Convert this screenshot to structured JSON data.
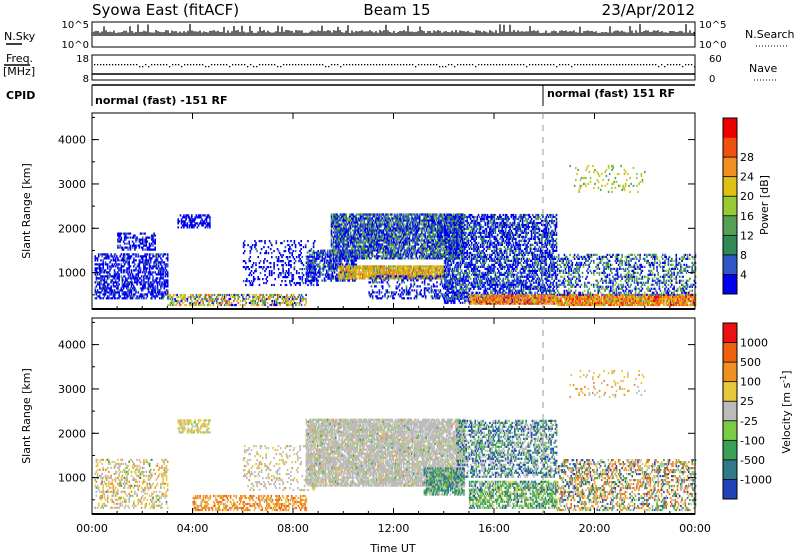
{
  "header": {
    "station": "Syowa East (fitACF)",
    "beam": "Beam 15",
    "date": "23/Apr/2012"
  },
  "status_panels": {
    "nsky_label": "N.Sky",
    "nsky_ticks": [
      "10^5",
      "10^0"
    ],
    "nsearch_label": "N.Search",
    "nsearch_ticks": [
      "10^5",
      "10^0"
    ],
    "freq_label": "Freq.",
    "freq_unit": "[MHz]",
    "freq_ticks": [
      "18",
      "8"
    ],
    "nave_label": "Nave",
    "nave_ticks": [
      "60",
      "0"
    ],
    "cpid_label": "CPID",
    "cpid_segments": [
      {
        "label": "normal (fast) -151 RF",
        "start_hour": 0,
        "end_hour": 18
      },
      {
        "label": "normal (fast) 151 RF",
        "start_hour": 18,
        "end_hour": 24
      }
    ]
  },
  "chart_data": [
    {
      "type": "heatmap",
      "title": "",
      "xlabel": "",
      "ylabel": "Slant Range [km]",
      "xlim": [
        0,
        24
      ],
      "ylim": [
        180,
        4600
      ],
      "x_ticks": [
        "00:00",
        "04:00",
        "08:00",
        "12:00",
        "16:00",
        "20:00",
        "00:00"
      ],
      "y_ticks": [
        1000,
        2000,
        3000,
        4000
      ],
      "colorbar": {
        "label": "Power [dB]",
        "ticks": [
          4,
          8,
          12,
          16,
          20,
          24,
          28
        ],
        "colors": [
          "#0000ee",
          "#2f57c8",
          "#2f8a57",
          "#55a055",
          "#99c935",
          "#e0c012",
          "#f09020",
          "#f05010",
          "#ee0000"
        ]
      },
      "regions": [
        {
          "t0": 0.1,
          "t1": 3.0,
          "r0": 400,
          "r1": 1400,
          "density": 0.5,
          "weights": [
            0.75,
            0.18,
            0.05,
            0.02,
            0,
            0,
            0,
            0,
            0
          ]
        },
        {
          "t0": 1.0,
          "t1": 2.5,
          "r0": 1500,
          "r1": 1900,
          "density": 0.45,
          "weights": [
            0.8,
            0.15,
            0.05,
            0,
            0,
            0,
            0,
            0,
            0
          ]
        },
        {
          "t0": 3.4,
          "t1": 4.7,
          "r0": 2000,
          "r1": 2300,
          "density": 0.6,
          "weights": [
            0.9,
            0.1,
            0,
            0,
            0,
            0,
            0,
            0,
            0
          ]
        },
        {
          "t0": 3.0,
          "t1": 8.5,
          "r0": 250,
          "r1": 500,
          "density": 0.55,
          "weights": [
            0.1,
            0.1,
            0.1,
            0.1,
            0.15,
            0.2,
            0.15,
            0.1,
            0
          ]
        },
        {
          "t0": 6.0,
          "t1": 9.0,
          "r0": 700,
          "r1": 1700,
          "density": 0.22,
          "weights": [
            0.8,
            0.15,
            0.05,
            0,
            0,
            0,
            0,
            0,
            0
          ]
        },
        {
          "t0": 8.5,
          "t1": 10.5,
          "r0": 800,
          "r1": 1500,
          "density": 0.6,
          "weights": [
            0.55,
            0.25,
            0.15,
            0.05,
            0,
            0,
            0,
            0,
            0
          ]
        },
        {
          "t0": 9.5,
          "t1": 14.8,
          "r0": 1300,
          "r1": 2300,
          "density": 0.78,
          "weights": [
            0.4,
            0.2,
            0.2,
            0.1,
            0.1,
            0,
            0,
            0,
            0
          ]
        },
        {
          "t0": 9.8,
          "t1": 14.0,
          "r0": 850,
          "r1": 1150,
          "density": 0.9,
          "weights": [
            0,
            0,
            0,
            0.1,
            0.2,
            0.3,
            0.3,
            0.1,
            0
          ]
        },
        {
          "t0": 11.0,
          "t1": 14.8,
          "r0": 400,
          "r1": 900,
          "density": 0.35,
          "weights": [
            0.6,
            0.25,
            0.1,
            0.05,
            0,
            0,
            0,
            0,
            0
          ]
        },
        {
          "t0": 14.0,
          "t1": 18.5,
          "r0": 300,
          "r1": 2300,
          "density": 0.55,
          "weights": [
            0.55,
            0.2,
            0.15,
            0.1,
            0,
            0,
            0,
            0,
            0
          ]
        },
        {
          "t0": 15.0,
          "t1": 18.5,
          "r0": 280,
          "r1": 480,
          "density": 0.85,
          "weights": [
            0,
            0,
            0,
            0,
            0.1,
            0.2,
            0.3,
            0.3,
            0.1
          ]
        },
        {
          "t0": 18.5,
          "t1": 24.0,
          "r0": 250,
          "r1": 480,
          "density": 0.9,
          "weights": [
            0,
            0,
            0,
            0.05,
            0.1,
            0.2,
            0.3,
            0.25,
            0.1
          ]
        },
        {
          "t0": 18.5,
          "t1": 24.0,
          "r0": 480,
          "r1": 1400,
          "density": 0.35,
          "weights": [
            0.3,
            0.2,
            0.2,
            0.2,
            0.1,
            0,
            0,
            0,
            0
          ]
        },
        {
          "t0": 19.0,
          "t1": 22.0,
          "r0": 2800,
          "r1": 3400,
          "density": 0.08,
          "weights": [
            0,
            0,
            0,
            0.3,
            0.4,
            0.3,
            0,
            0,
            0
          ]
        }
      ]
    },
    {
      "type": "heatmap",
      "title": "",
      "xlabel": "Time UT",
      "ylabel": "Slant Range [km]",
      "xlim": [
        0,
        24
      ],
      "ylim": [
        180,
        4600
      ],
      "x_ticks": [
        "00:00",
        "04:00",
        "08:00",
        "12:00",
        "16:00",
        "20:00",
        "00:00"
      ],
      "y_ticks": [
        1000,
        2000,
        3000,
        4000
      ],
      "colorbar": {
        "label": "Velocity [m s^-1]",
        "ticks": [
          1000,
          500,
          100,
          25,
          -25,
          -100,
          -500,
          -1000
        ],
        "colors": [
          "#2244bb",
          "#2e7a8a",
          "#3aa055",
          "#7acc44",
          "#bbbbbb",
          "#e6c83c",
          "#f09020",
          "#f06010",
          "#ee1010"
        ]
      },
      "regions": [
        {
          "t0": 0.1,
          "t1": 3.0,
          "r0": 300,
          "r1": 1400,
          "density": 0.3,
          "weights": [
            0,
            0,
            0.05,
            0.05,
            0.4,
            0.3,
            0.2,
            0,
            0
          ]
        },
        {
          "t0": 3.4,
          "t1": 4.7,
          "r0": 2000,
          "r1": 2300,
          "density": 0.5,
          "weights": [
            0,
            0,
            0,
            0.1,
            0.3,
            0.6,
            0,
            0,
            0
          ]
        },
        {
          "t0": 4.0,
          "t1": 8.5,
          "r0": 250,
          "r1": 600,
          "density": 0.45,
          "weights": [
            0,
            0,
            0,
            0,
            0.05,
            0.15,
            0.6,
            0.2,
            0
          ]
        },
        {
          "t0": 6.0,
          "t1": 9.0,
          "r0": 700,
          "r1": 1700,
          "density": 0.18,
          "weights": [
            0,
            0,
            0,
            0,
            0.7,
            0.2,
            0.1,
            0,
            0
          ]
        },
        {
          "t0": 8.5,
          "t1": 14.8,
          "r0": 800,
          "r1": 2300,
          "density": 0.8,
          "weights": [
            0,
            0,
            0.02,
            0.05,
            0.85,
            0.05,
            0.03,
            0,
            0
          ]
        },
        {
          "t0": 13.2,
          "t1": 14.8,
          "r0": 600,
          "r1": 1200,
          "density": 0.7,
          "weights": [
            0,
            0.4,
            0.3,
            0.1,
            0.2,
            0,
            0,
            0,
            0
          ]
        },
        {
          "t0": 14.5,
          "t1": 18.5,
          "r0": 1000,
          "r1": 2300,
          "density": 0.5,
          "weights": [
            0.2,
            0.2,
            0.15,
            0.1,
            0.35,
            0,
            0,
            0,
            0
          ]
        },
        {
          "t0": 15.0,
          "t1": 18.5,
          "r0": 300,
          "r1": 900,
          "density": 0.6,
          "weights": [
            0.05,
            0.15,
            0.3,
            0.3,
            0.1,
            0.1,
            0,
            0,
            0
          ]
        },
        {
          "t0": 18.5,
          "t1": 24.0,
          "r0": 250,
          "r1": 1400,
          "density": 0.4,
          "weights": [
            0.1,
            0.15,
            0.1,
            0.05,
            0.2,
            0.1,
            0.2,
            0.1,
            0
          ]
        },
        {
          "t0": 19.0,
          "t1": 22.0,
          "r0": 2800,
          "r1": 3400,
          "density": 0.08,
          "weights": [
            0,
            0,
            0,
            0,
            0.3,
            0.4,
            0.3,
            0,
            0
          ]
        }
      ]
    }
  ]
}
